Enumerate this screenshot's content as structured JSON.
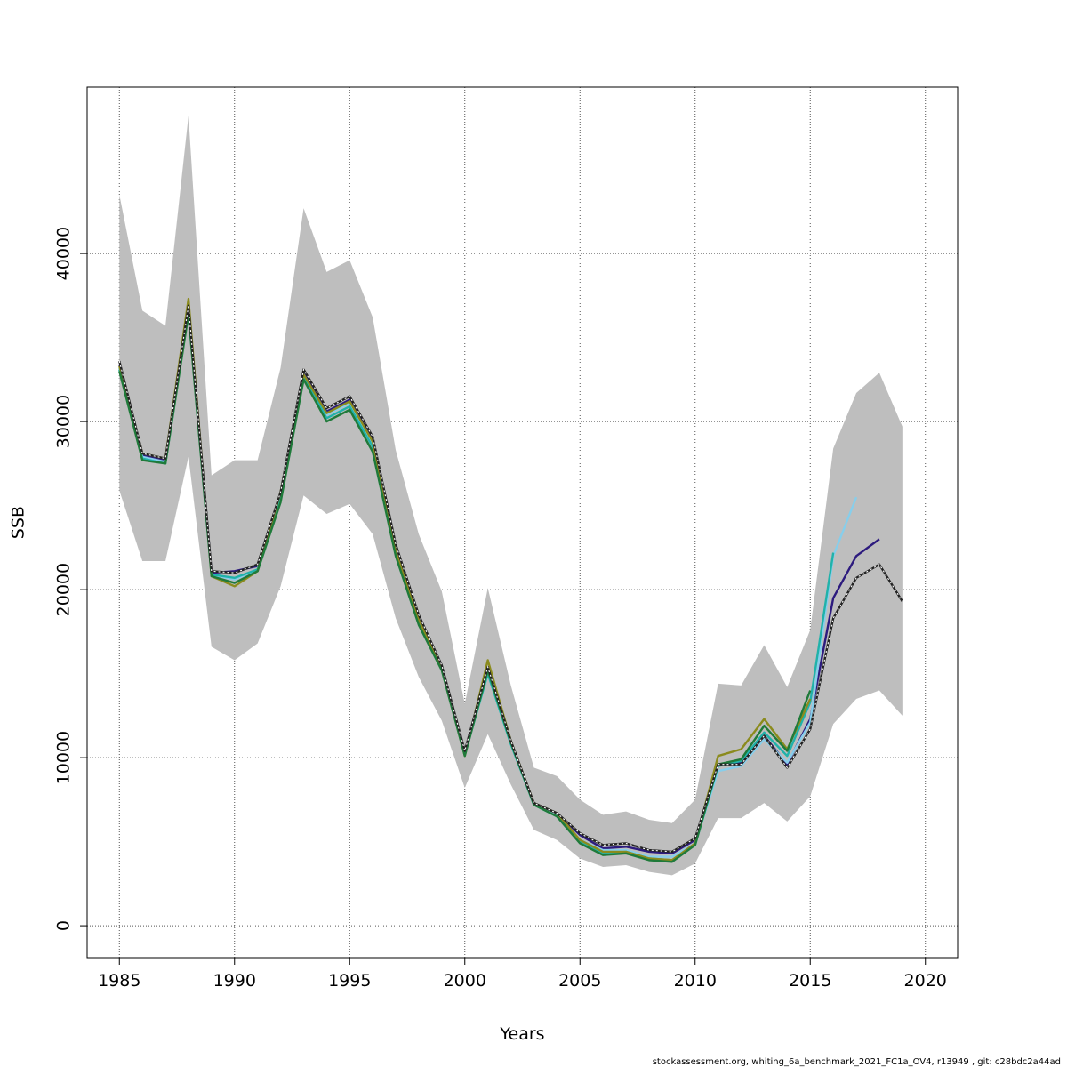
{
  "chart_data": {
    "type": "line",
    "xlabel": "Years",
    "ylabel": "SSB",
    "xlim": [
      1983.6,
      2021.4
    ],
    "ylim": [
      -1900,
      49900
    ],
    "xticks": [
      "1985",
      "1990",
      "1995",
      "2000",
      "2005",
      "2010",
      "2015",
      "2020"
    ],
    "yticks": [
      "0",
      "10000",
      "20000",
      "30000",
      "40000"
    ],
    "grid": true,
    "footer": "stockassessment.org, whiting_6a_benchmark_2021_FC1a_OV4, r13949 , git: c28bdc2a44ad",
    "confidence_band": {
      "color": "#bebebe",
      "years": [
        1985,
        1986,
        1987,
        1988,
        1989,
        1990,
        1991,
        1992,
        1993,
        1994,
        1995,
        1996,
        1997,
        1998,
        1999,
        2000,
        2001,
        2002,
        2003,
        2004,
        2005,
        2006,
        2007,
        2008,
        2009,
        2010,
        2011,
        2012,
        2013,
        2014,
        2015,
        2016,
        2017,
        2018,
        2019
      ],
      "upper": [
        43500,
        36600,
        35700,
        48200,
        26800,
        27700,
        27700,
        33200,
        42700,
        38900,
        39600,
        36200,
        28300,
        23300,
        19900,
        13200,
        20100,
        14300,
        9400,
        8900,
        7500,
        6600,
        6800,
        6300,
        6100,
        7500,
        14400,
        14300,
        16700,
        14200,
        17600,
        28400,
        31700,
        32900,
        29700
      ],
      "lower": [
        25900,
        21700,
        21700,
        27900,
        16600,
        15800,
        16800,
        20200,
        25600,
        24500,
        25100,
        23300,
        18300,
        14800,
        12200,
        8200,
        11400,
        8400,
        5700,
        5100,
        4000,
        3500,
        3600,
        3200,
        3000,
        3700,
        6400,
        6400,
        7300,
        6200,
        7700,
        12000,
        13500,
        14000,
        12500
      ]
    },
    "series": [
      {
        "color": "#222222",
        "dashed_overlay": true,
        "years": [
          1985,
          1986,
          1987,
          1988,
          1989,
          1990,
          1991,
          1992,
          1993,
          1994,
          1995,
          1996,
          1997,
          1998,
          1999,
          2000,
          2001,
          2002,
          2003,
          2004,
          2005,
          2006,
          2007,
          2008,
          2009,
          2010,
          2011,
          2012,
          2013,
          2014,
          2015,
          2016,
          2017,
          2018,
          2019
        ],
        "values": [
          33600,
          28100,
          27800,
          36900,
          21100,
          21000,
          21500,
          25800,
          33100,
          30800,
          31500,
          29100,
          22700,
          18500,
          15500,
          10400,
          15400,
          11000,
          7300,
          6700,
          5500,
          4800,
          4900,
          4500,
          4400,
          5200,
          9600,
          9600,
          11300,
          9400,
          11700,
          18300,
          20700,
          21500,
          19300
        ]
      },
      {
        "color": "#2d1b7e",
        "years": [
          1985,
          1986,
          1987,
          1988,
          1989,
          1990,
          1991,
          1992,
          1993,
          1994,
          1995,
          1996,
          1997,
          1998,
          1999,
          2000,
          2001,
          2002,
          2003,
          2004,
          2005,
          2006,
          2007,
          2008,
          2009,
          2010,
          2011,
          2012,
          2013,
          2014,
          2015,
          2016,
          2017,
          2018
        ],
        "values": [
          33400,
          28000,
          27700,
          36800,
          21000,
          21100,
          21400,
          25700,
          33000,
          30600,
          31300,
          28900,
          22500,
          18300,
          15400,
          10300,
          15300,
          10900,
          7300,
          6700,
          5400,
          4600,
          4700,
          4400,
          4300,
          5100,
          9600,
          9700,
          11300,
          9600,
          12300,
          19500,
          22000,
          23000
        ]
      },
      {
        "color": "#87ceeb",
        "years": [
          1985,
          1986,
          1987,
          1988,
          1989,
          1990,
          1991,
          1992,
          1993,
          1994,
          1995,
          1996,
          1997,
          1998,
          1999,
          2000,
          2001,
          2002,
          2003,
          2004,
          2005,
          2006,
          2007,
          2008,
          2009,
          2010,
          2011,
          2012,
          2013,
          2014,
          2015,
          2016,
          2017
        ],
        "values": [
          33200,
          27900,
          27600,
          36600,
          20900,
          20600,
          21200,
          25500,
          32800,
          30400,
          31100,
          28700,
          22300,
          18200,
          15300,
          10200,
          15000,
          10800,
          7200,
          6600,
          5100,
          4500,
          4500,
          4100,
          4100,
          4900,
          9200,
          9500,
          11100,
          9700,
          12100,
          22000,
          25500
        ]
      },
      {
        "color": "#20b2aa",
        "years": [
          1985,
          1986,
          1987,
          1988,
          1989,
          1990,
          1991,
          1992,
          1993,
          1994,
          1995,
          1996,
          1997,
          1998,
          1999,
          2000,
          2001,
          2002,
          2003,
          2004,
          2005,
          2006,
          2007,
          2008,
          2009,
          2010,
          2011,
          2012,
          2013,
          2014,
          2015,
          2016
        ],
        "values": [
          33100,
          27800,
          27500,
          36500,
          20900,
          20700,
          21200,
          25400,
          32700,
          30200,
          30900,
          28500,
          22200,
          18100,
          15300,
          10200,
          15000,
          10800,
          7200,
          6500,
          5000,
          4300,
          4400,
          4000,
          3900,
          4800,
          9500,
          9800,
          11500,
          10100,
          13300,
          22200
        ]
      },
      {
        "color": "#8b8b1e",
        "years": [
          1985,
          1986,
          1987,
          1988,
          1989,
          1990,
          1991,
          1992,
          1993,
          1994,
          1995,
          1996,
          1997,
          1998,
          1999,
          2000,
          2001,
          2002,
          2003,
          2004,
          2005,
          2006,
          2007,
          2008,
          2009,
          2010,
          2011,
          2012,
          2013,
          2014,
          2015
        ],
        "values": [
          33300,
          28100,
          27800,
          37300,
          20800,
          20200,
          21100,
          25800,
          32800,
          30500,
          31200,
          28800,
          22300,
          18200,
          15400,
          10100,
          15800,
          11000,
          7300,
          6700,
          5100,
          4400,
          4400,
          4000,
          3900,
          4900,
          10100,
          10500,
          12300,
          10500,
          13500
        ]
      },
      {
        "color": "#1f7a3a",
        "years": [
          1985,
          1986,
          1987,
          1988,
          1989,
          1990,
          1991,
          1992,
          1993,
          1994,
          1995,
          1996,
          1997,
          1998,
          1999,
          2000,
          2001,
          2002,
          2003,
          2004,
          2005,
          2006,
          2007,
          2008,
          2009,
          2010,
          2011,
          2012,
          2013,
          2014,
          2015
        ],
        "values": [
          33000,
          27700,
          27500,
          36400,
          20800,
          20400,
          21100,
          25200,
          32500,
          30000,
          30700,
          28200,
          22000,
          17900,
          15200,
          10100,
          15200,
          10900,
          7200,
          6500,
          4900,
          4200,
          4300,
          3900,
          3800,
          4800,
          9600,
          9900,
          11900,
          10400,
          14000
        ]
      }
    ]
  }
}
